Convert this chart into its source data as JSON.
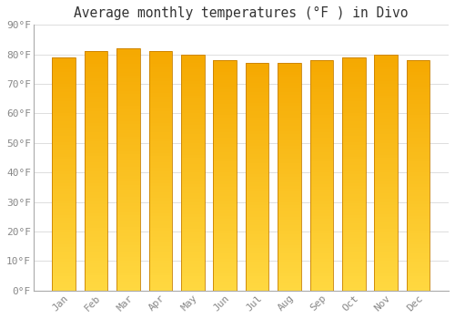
{
  "months": [
    "Jan",
    "Feb",
    "Mar",
    "Apr",
    "May",
    "Jun",
    "Jul",
    "Aug",
    "Sep",
    "Oct",
    "Nov",
    "Dec"
  ],
  "temperatures": [
    79,
    81,
    82,
    81,
    80,
    78,
    77,
    77,
    78,
    79,
    80,
    78
  ],
  "title": "Average monthly temperatures (°F ) in Divo",
  "ylim": [
    0,
    90
  ],
  "yticks": [
    0,
    10,
    20,
    30,
    40,
    50,
    60,
    70,
    80,
    90
  ],
  "ytick_labels": [
    "0°F",
    "10°F",
    "20°F",
    "30°F",
    "40°F",
    "50°F",
    "60°F",
    "70°F",
    "80°F",
    "90°F"
  ],
  "bar_color_top": "#F5A800",
  "bar_color_bottom": "#FFD840",
  "bar_edge_color": "#C88000",
  "background_color": "#FFFFFF",
  "plot_bg_color": "#FFFFFF",
  "grid_color": "#DDDDDD",
  "title_fontsize": 10.5,
  "tick_fontsize": 8,
  "font_family": "monospace",
  "bar_width": 0.72
}
